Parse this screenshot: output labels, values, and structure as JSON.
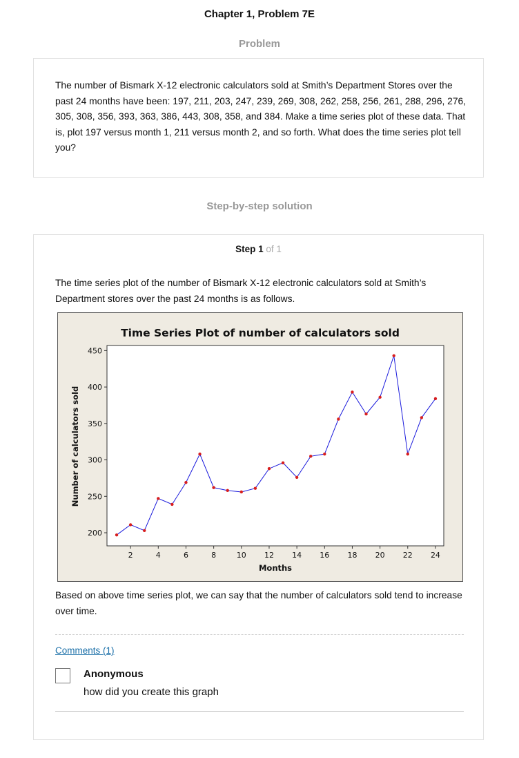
{
  "page_title": "Chapter 1, Problem 7E",
  "problem_heading": "Problem",
  "problem_text": "The number of Bismark X-12 electronic calculators sold at Smith’s Department Stores over the past 24 months have been: 197, 211, 203, 247, 239, 269, 308, 262, 258, 256, 261, 288, 296, 276, 305, 308, 356, 393, 363, 386, 443, 308, 358, and 384. Make a time series plot of these data. That is, plot 197 versus month 1, 211 versus month 2, and so forth. What does the time series plot tell you?",
  "solution_heading": "Step-by-step solution",
  "step": {
    "label": "Step 1",
    "of_text": "of 1"
  },
  "intro_text": "The time series plot of the number of Bismark X-12 electronic calculators sold at Smith’s Department stores over the past 24 months is as follows.",
  "conclusion_text": "Based on above time series plot, we can say that the number of calculators sold tend to increase over time.",
  "comments_link": "Comments (1)",
  "comment": {
    "author": "Anonymous",
    "body": "how did you create this graph"
  },
  "colors": {
    "line": "#1a1adc",
    "marker": "#d81e1e",
    "chart_bg": "#efebe2",
    "link": "#1a6fa8"
  },
  "chart_data": {
    "type": "line",
    "title": "Time Series Plot of number of calculators sold",
    "xlabel": "Months",
    "ylabel": "Number of calculators sold",
    "x": [
      1,
      2,
      3,
      4,
      5,
      6,
      7,
      8,
      9,
      10,
      11,
      12,
      13,
      14,
      15,
      16,
      17,
      18,
      19,
      20,
      21,
      22,
      23,
      24
    ],
    "series": [
      {
        "values": [
          197,
          211,
          203,
          247,
          239,
          269,
          308,
          262,
          258,
          256,
          261,
          288,
          296,
          276,
          305,
          308,
          356,
          393,
          363,
          386,
          443,
          308,
          358,
          384
        ]
      }
    ],
    "xticks": [
      2,
      4,
      6,
      8,
      10,
      12,
      14,
      16,
      18,
      20,
      22,
      24
    ],
    "yticks": [
      200,
      250,
      300,
      350,
      400,
      450
    ],
    "xlim": [
      0.3,
      24.6
    ],
    "ylim": [
      182,
      457
    ],
    "grid": false,
    "legend": "none"
  }
}
